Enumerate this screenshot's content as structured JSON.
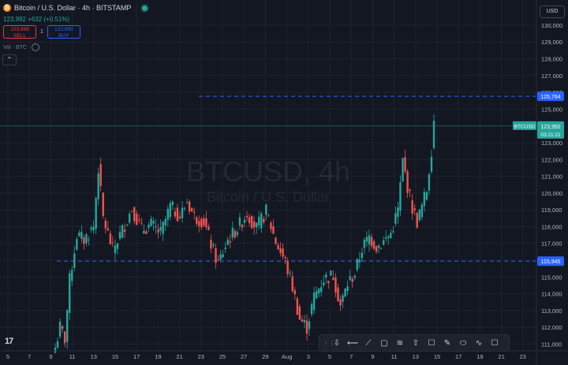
{
  "header": {
    "symbol_title": "Bitcoin / U.S. Dollar · 4h · BITSTAMP",
    "btc_glyph": "₿",
    "price_change": "123,992 +632 (+0.51%)"
  },
  "trade": {
    "sell_price": "123,989",
    "sell_label": "SELL",
    "spread": "1",
    "buy_price": "123,990",
    "buy_label": "BUY"
  },
  "indicator": {
    "label": "Vol · BTC"
  },
  "collapse_glyph": "⌃",
  "currency": "USD",
  "watermark": {
    "symbol": "BTCUSD, 4h",
    "name": "Bitcoin / U.S. Dollar"
  },
  "logo": "17",
  "colors": {
    "up": "#26a69a",
    "down": "#ef5350",
    "level": "#2962ff",
    "background": "#131722"
  },
  "price_axis": {
    "ticks": [
      "130,000",
      "129,000",
      "128,000",
      "127,000",
      "126,000",
      "125,000",
      "124,000",
      "123,000",
      "122,000",
      "121,000",
      "120,000",
      "119,000",
      "118,000",
      "117,000",
      "116,000",
      "115,000",
      "114,000",
      "113,000",
      "112,000",
      "111,000"
    ],
    "tick_values": [
      130000,
      129000,
      128000,
      127000,
      126000,
      125000,
      124000,
      123000,
      122000,
      121000,
      120000,
      119000,
      118000,
      117000,
      116000,
      115000,
      114000,
      113000,
      112000,
      111000
    ],
    "range": [
      110600,
      131500
    ]
  },
  "time_axis": {
    "labels": [
      "5",
      "7",
      "9",
      "11",
      "13",
      "15",
      "17",
      "19",
      "21",
      "23",
      "25",
      "27",
      "29",
      "Aug",
      "3",
      "5",
      "7",
      "9",
      "11",
      "13",
      "15",
      "17",
      "19",
      "21",
      "23"
    ]
  },
  "levels": [
    {
      "label": "125,764",
      "value": 125764
    },
    {
      "label": "115,945",
      "value": 115945
    }
  ],
  "current": {
    "symbol": "BTCUSD",
    "price": "123,992",
    "countdown": "03:21:21",
    "value": 123992
  },
  "chart_data": {
    "type": "candlestick",
    "interval": "4h",
    "ylim": [
      110600,
      131500
    ],
    "anchors": [
      [
        0,
        110800
      ],
      [
        2,
        112000
      ],
      [
        4,
        111300
      ],
      [
        6,
        114800
      ],
      [
        9,
        117500
      ],
      [
        12,
        117200
      ],
      [
        16,
        118000
      ],
      [
        18,
        121500
      ],
      [
        20,
        118500
      ],
      [
        24,
        116600
      ],
      [
        28,
        117800
      ],
      [
        32,
        119100
      ],
      [
        36,
        117800
      ],
      [
        40,
        118100
      ],
      [
        44,
        117600
      ],
      [
        48,
        119200
      ],
      [
        52,
        118600
      ],
      [
        55,
        119500
      ],
      [
        58,
        118600
      ],
      [
        62,
        118300
      ],
      [
        66,
        116500
      ],
      [
        68,
        115800
      ],
      [
        72,
        117200
      ],
      [
        76,
        117900
      ],
      [
        80,
        118800
      ],
      [
        84,
        117900
      ],
      [
        88,
        118900
      ],
      [
        92,
        117100
      ],
      [
        96,
        115900
      ],
      [
        99,
        114400
      ],
      [
        102,
        112500
      ],
      [
        105,
        112000
      ],
      [
        108,
        113800
      ],
      [
        112,
        114900
      ],
      [
        116,
        115100
      ],
      [
        119,
        113300
      ],
      [
        122,
        114600
      ],
      [
        125,
        115200
      ],
      [
        128,
        116700
      ],
      [
        131,
        117400
      ],
      [
        134,
        116800
      ],
      [
        137,
        117100
      ],
      [
        140,
        117600
      ],
      [
        143,
        119000
      ],
      [
        145,
        121900
      ],
      [
        147,
        120400
      ],
      [
        149,
        119100
      ],
      [
        151,
        118300
      ],
      [
        153,
        119200
      ],
      [
        155,
        120200
      ],
      [
        157,
        122600
      ],
      [
        158,
        124300
      ]
    ]
  }
}
